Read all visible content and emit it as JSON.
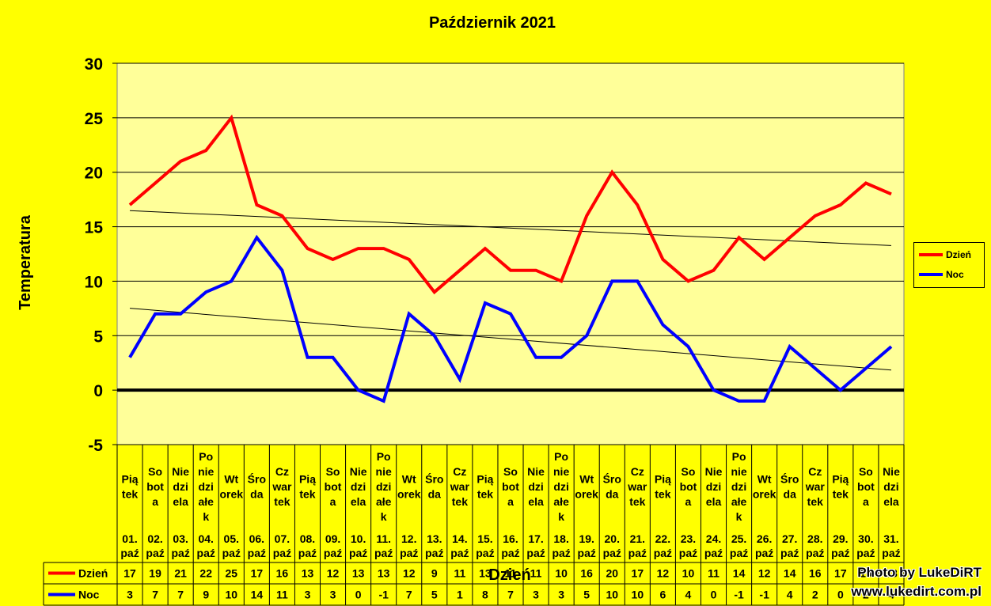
{
  "chart_data": {
    "type": "line",
    "title": "Październik 2021",
    "xlabel": "Dzień",
    "ylabel": "Temperatura",
    "ylim": [
      -5,
      30
    ],
    "yticks": [
      "30",
      "25",
      "20",
      "15",
      "10",
      "5",
      "0",
      "-5"
    ],
    "grid": true,
    "legend_position": "right",
    "categories": [
      {
        "day": "Pią\ntek",
        "date": "01.\npaź"
      },
      {
        "day": "So\nbot\na",
        "date": "02.\npaź"
      },
      {
        "day": "Nie\ndzi\nela",
        "date": "03.\npaź"
      },
      {
        "day": "Po\nnie\ndzi\nałe\nk",
        "date": "04.\npaź"
      },
      {
        "day": "Wt\norek",
        "date": "05.\npaź"
      },
      {
        "day": "Śro\nda",
        "date": "06.\npaź"
      },
      {
        "day": "Cz\nwar\ntek",
        "date": "07.\npaź"
      },
      {
        "day": "Pią\ntek",
        "date": "08.\npaź"
      },
      {
        "day": "So\nbot\na",
        "date": "09.\npaź"
      },
      {
        "day": "Nie\ndzi\nela",
        "date": "10.\npaź"
      },
      {
        "day": "Po\nnie\ndzi\nałe\nk",
        "date": "11.\npaź"
      },
      {
        "day": "Wt\norek",
        "date": "12.\npaź"
      },
      {
        "day": "Śro\nda",
        "date": "13.\npaź"
      },
      {
        "day": "Cz\nwar\ntek",
        "date": "14.\npaź"
      },
      {
        "day": "Pią\ntek",
        "date": "15.\npaź"
      },
      {
        "day": "So\nbot\na",
        "date": "16.\npaź"
      },
      {
        "day": "Nie\ndzi\nela",
        "date": "17.\npaź"
      },
      {
        "day": "Po\nnie\ndzi\nałe\nk",
        "date": "18.\npaź"
      },
      {
        "day": "Wt\norek",
        "date": "19.\npaź"
      },
      {
        "day": "Śro\nda",
        "date": "20.\npaź"
      },
      {
        "day": "Cz\nwar\ntek",
        "date": "21.\npaź"
      },
      {
        "day": "Pią\ntek",
        "date": "22.\npaź"
      },
      {
        "day": "So\nbot\na",
        "date": "23.\npaź"
      },
      {
        "day": "Nie\ndzi\nela",
        "date": "24.\npaź"
      },
      {
        "day": "Po\nnie\ndzi\nałe\nk",
        "date": "25.\npaź"
      },
      {
        "day": "Wt\norek",
        "date": "26.\npaź"
      },
      {
        "day": "Śro\nda",
        "date": "27.\npaź"
      },
      {
        "day": "Cz\nwar\ntek",
        "date": "28.\npaź"
      },
      {
        "day": "Pią\ntek",
        "date": "29.\npaź"
      },
      {
        "day": "So\nbot\na",
        "date": "30.\npaź"
      },
      {
        "day": "Nie\ndzi\nela",
        "date": "31.\npaź"
      }
    ],
    "series": [
      {
        "name": "Dzień",
        "color": "#FF0000",
        "values": [
          17,
          19,
          21,
          22,
          25,
          17,
          16,
          13,
          12,
          13,
          13,
          12,
          9,
          11,
          13,
          11,
          11,
          10,
          16,
          20,
          17,
          12,
          10,
          11,
          14,
          12,
          14,
          16,
          17,
          19,
          18
        ]
      },
      {
        "name": "Noc",
        "color": "#0000FF",
        "values": [
          3,
          7,
          7,
          9,
          10,
          14,
          11,
          3,
          3,
          0,
          -1,
          7,
          5,
          1,
          8,
          7,
          3,
          3,
          5,
          10,
          10,
          6,
          4,
          0,
          -1,
          -1,
          4,
          2,
          0,
          2,
          4
        ]
      }
    ],
    "trendlines": true,
    "colors": {
      "background": "#FFFF00",
      "plot_area": "#FFFF99"
    }
  },
  "watermark": {
    "line1": "Photo by LukeDiRT",
    "line2": "www.lukedirt.com.pl"
  }
}
